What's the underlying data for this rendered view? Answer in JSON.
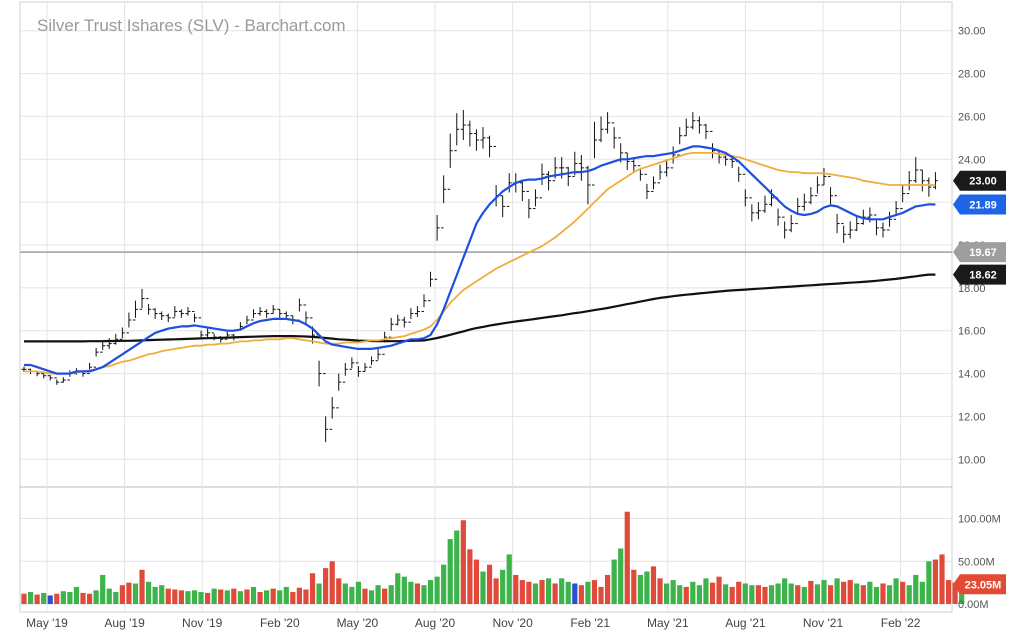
{
  "chart_data": {
    "type": "ohlc",
    "title": "Silver Trust Ishares (SLV) - Barchart.com",
    "price_axis": {
      "ylim": [
        9.5,
        30.5
      ],
      "ticks": [
        "10.00",
        "12.00",
        "14.00",
        "16.00",
        "18.00",
        "20.00",
        "22.00",
        "24.00",
        "26.00",
        "28.00",
        "30.00"
      ]
    },
    "volume_axis": {
      "ylim": [
        0,
        110
      ],
      "ticks": [
        "0.00M",
        "50.00M",
        "100.00M"
      ]
    },
    "x_ticks": [
      "May '19",
      "Aug '19",
      "Nov '19",
      "Feb '20",
      "May '20",
      "Aug '20",
      "Nov '20",
      "Feb '21",
      "May '21",
      "Aug '21",
      "Nov '21",
      "Feb '22"
    ],
    "grid": true,
    "reference_line": {
      "value": 19.67,
      "label": "19.67",
      "color": "#9e9e9e"
    },
    "last_value_tags": [
      {
        "label": "23.00",
        "value": 23.0,
        "color": "#1a1a1a"
      },
      {
        "label": "21.89",
        "value": 21.89,
        "color": "#1e64e6"
      },
      {
        "label": "18.62",
        "value": 18.62,
        "color": "#1a1a1a"
      }
    ],
    "volume_tag": {
      "label": "23.05M",
      "value": 23.05,
      "color": "#e24a33"
    },
    "colors": {
      "ma_fast": "#1e4fe0",
      "ma_mid": "#f0ad3c",
      "ma_slow": "#111111",
      "vol_up": "#3cb44b",
      "vol_down": "#e04a3a",
      "vol_other": "#2a4fd0"
    },
    "ohlc_close": [
      14.2,
      14.1,
      14.0,
      13.9,
      13.8,
      13.6,
      13.7,
      14.0,
      14.1,
      14.0,
      14.3,
      15.0,
      15.3,
      15.4,
      15.6,
      15.9,
      16.5,
      17.0,
      17.5,
      17.0,
      16.8,
      16.7,
      16.6,
      16.9,
      16.8,
      16.9,
      16.6,
      15.8,
      15.9,
      15.7,
      15.6,
      15.8,
      15.7,
      16.2,
      16.5,
      16.8,
      16.9,
      16.8,
      17.0,
      16.8,
      16.7,
      16.5,
      17.2,
      16.6,
      15.8,
      14.0,
      11.4,
      12.4,
      13.6,
      14.2,
      14.5,
      14.1,
      14.3,
      14.6,
      14.9,
      15.7,
      16.3,
      16.5,
      16.4,
      16.8,
      16.9,
      17.4,
      18.4,
      20.8,
      22.6,
      24.4,
      25.4,
      25.6,
      25.2,
      24.9,
      25.0,
      24.6,
      22.3,
      21.8,
      22.9,
      22.9,
      22.5,
      21.7,
      22.2,
      23.3,
      23.0,
      23.6,
      23.6,
      23.2,
      23.8,
      23.6,
      22.8,
      24.9,
      25.4,
      25.7,
      25.0,
      24.3,
      23.9,
      23.7,
      23.3,
      22.5,
      22.9,
      23.4,
      23.6,
      24.2,
      25.1,
      25.5,
      25.8,
      25.6,
      25.3,
      24.4,
      24.1,
      24.0,
      23.9,
      23.3,
      22.2,
      21.5,
      21.6,
      21.9,
      22.2,
      21.3,
      20.7,
      21.0,
      21.8,
      22.0,
      22.3,
      22.8,
      23.2,
      22.3,
      21.0,
      20.5,
      20.7,
      21.0,
      21.3,
      21.4,
      20.8,
      20.7,
      21.2,
      21.7,
      22.4,
      23.0,
      23.5,
      23.0,
      22.7,
      23.0
    ],
    "ohlc_range": [
      0.25,
      0.25,
      0.25,
      0.25,
      0.25,
      0.25,
      0.25,
      0.3,
      0.3,
      0.3,
      0.4,
      0.4,
      0.4,
      0.5,
      0.5,
      0.5,
      0.7,
      0.8,
      0.9,
      0.5,
      0.5,
      0.4,
      0.4,
      0.5,
      0.4,
      0.4,
      0.4,
      0.4,
      0.4,
      0.3,
      0.3,
      0.3,
      0.3,
      0.4,
      0.4,
      0.4,
      0.4,
      0.4,
      0.4,
      0.4,
      0.4,
      0.4,
      0.6,
      0.6,
      0.8,
      1.2,
      1.2,
      1.0,
      0.8,
      0.6,
      0.5,
      0.5,
      0.4,
      0.4,
      0.5,
      0.5,
      0.6,
      0.5,
      0.5,
      0.5,
      0.5,
      0.6,
      0.7,
      1.2,
      1.3,
      1.6,
      1.5,
      1.4,
      1.2,
      1.0,
      1.0,
      1.0,
      1.0,
      1.0,
      0.9,
      0.9,
      0.9,
      0.9,
      0.8,
      1.0,
      0.9,
      1.0,
      1.0,
      0.9,
      1.1,
      1.2,
      1.8,
      1.7,
      1.2,
      1.0,
      1.0,
      0.9,
      0.8,
      0.7,
      0.6,
      0.7,
      0.6,
      0.7,
      0.8,
      0.8,
      0.8,
      0.8,
      0.8,
      0.8,
      0.7,
      0.7,
      0.6,
      0.6,
      0.6,
      0.7,
      0.8,
      0.8,
      0.8,
      0.8,
      0.8,
      0.8,
      0.8,
      0.8,
      0.8,
      0.8,
      0.8,
      0.8,
      0.8,
      0.8,
      0.9,
      0.8,
      0.8,
      0.7,
      0.7,
      0.7,
      0.7,
      0.7,
      0.7,
      0.7,
      0.8,
      0.9,
      1.2,
      1.0,
      0.9,
      0.8
    ],
    "ma_fast": [
      14.4,
      14.4,
      14.3,
      14.2,
      14.1,
      14.0,
      14.0,
      14.0,
      14.1,
      14.1,
      14.1,
      14.2,
      14.3,
      14.5,
      14.7,
      14.9,
      15.1,
      15.3,
      15.5,
      15.7,
      15.9,
      16.0,
      16.1,
      16.15,
      16.2,
      16.2,
      16.25,
      16.2,
      16.15,
      16.1,
      16.05,
      16.0,
      16.0,
      16.05,
      16.2,
      16.35,
      16.45,
      16.5,
      16.55,
      16.55,
      16.55,
      16.5,
      16.45,
      16.3,
      16.1,
      15.8,
      15.5,
      15.35,
      15.3,
      15.25,
      15.2,
      15.15,
      15.15,
      15.15,
      15.2,
      15.25,
      15.3,
      15.4,
      15.5,
      15.6,
      15.6,
      15.65,
      15.8,
      16.3,
      17.0,
      17.8,
      18.6,
      19.4,
      20.2,
      21.0,
      21.5,
      21.9,
      22.2,
      22.5,
      22.7,
      22.9,
      23.0,
      23.05,
      23.05,
      23.1,
      23.2,
      23.25,
      23.3,
      23.35,
      23.4,
      23.4,
      23.45,
      23.55,
      23.7,
      23.8,
      23.9,
      24.0,
      24.0,
      24.05,
      24.1,
      24.15,
      24.15,
      24.2,
      24.25,
      24.3,
      24.4,
      24.5,
      24.6,
      24.6,
      24.55,
      24.5,
      24.4,
      24.3,
      24.1,
      23.9,
      23.6,
      23.3,
      23.0,
      22.7,
      22.4,
      22.1,
      21.8,
      21.6,
      21.45,
      21.4,
      21.45,
      21.55,
      21.75,
      21.85,
      21.8,
      21.65,
      21.5,
      21.35,
      21.25,
      21.2,
      21.2,
      21.2,
      21.3,
      21.4,
      21.5,
      21.65,
      21.8,
      21.85,
      21.9,
      21.89
    ],
    "ma_mid": [
      14.1,
      14.1,
      14.1,
      14.05,
      14.0,
      14.0,
      14.0,
      14.0,
      14.05,
      14.1,
      14.15,
      14.2,
      14.3,
      14.35,
      14.45,
      14.55,
      14.6,
      14.7,
      14.8,
      14.9,
      14.95,
      15.05,
      15.1,
      15.15,
      15.2,
      15.25,
      15.3,
      15.3,
      15.35,
      15.35,
      15.4,
      15.4,
      15.45,
      15.5,
      15.5,
      15.55,
      15.55,
      15.6,
      15.6,
      15.6,
      15.65,
      15.65,
      15.6,
      15.55,
      15.5,
      15.45,
      15.4,
      15.4,
      15.4,
      15.45,
      15.45,
      15.45,
      15.5,
      15.55,
      15.55,
      15.6,
      15.65,
      15.7,
      15.75,
      15.85,
      15.95,
      16.05,
      16.2,
      16.5,
      16.9,
      17.3,
      17.6,
      17.9,
      18.1,
      18.3,
      18.5,
      18.7,
      18.9,
      19.05,
      19.2,
      19.35,
      19.5,
      19.65,
      19.8,
      19.95,
      20.15,
      20.35,
      20.6,
      20.85,
      21.1,
      21.4,
      21.7,
      22.0,
      22.3,
      22.6,
      22.8,
      23.0,
      23.2,
      23.4,
      23.55,
      23.65,
      23.75,
      23.85,
      23.95,
      24.05,
      24.15,
      24.25,
      24.3,
      24.3,
      24.3,
      24.3,
      24.25,
      24.2,
      24.15,
      24.1,
      24.0,
      23.9,
      23.8,
      23.7,
      23.6,
      23.5,
      23.45,
      23.4,
      23.4,
      23.35,
      23.35,
      23.35,
      23.35,
      23.3,
      23.25,
      23.2,
      23.15,
      23.1,
      23.0,
      22.95,
      22.9,
      22.85,
      22.8,
      22.8,
      22.8,
      22.8,
      22.8,
      22.8,
      22.8,
      22.8
    ],
    "ma_slow": [
      15.5,
      15.5,
      15.5,
      15.5,
      15.5,
      15.5,
      15.5,
      15.5,
      15.5,
      15.5,
      15.51,
      15.51,
      15.51,
      15.52,
      15.52,
      15.53,
      15.53,
      15.54,
      15.55,
      15.56,
      15.57,
      15.58,
      15.59,
      15.6,
      15.61,
      15.62,
      15.63,
      15.64,
      15.65,
      15.66,
      15.67,
      15.68,
      15.69,
      15.7,
      15.71,
      15.72,
      15.73,
      15.74,
      15.75,
      15.75,
      15.75,
      15.75,
      15.74,
      15.73,
      15.71,
      15.69,
      15.66,
      15.63,
      15.6,
      15.58,
      15.56,
      15.54,
      15.53,
      15.52,
      15.51,
      15.51,
      15.51,
      15.51,
      15.52,
      15.53,
      15.54,
      15.55,
      15.6,
      15.66,
      15.73,
      15.81,
      15.89,
      15.97,
      16.05,
      16.12,
      16.18,
      16.24,
      16.29,
      16.34,
      16.39,
      16.43,
      16.47,
      16.51,
      16.55,
      16.6,
      16.64,
      16.68,
      16.72,
      16.77,
      16.82,
      16.86,
      16.91,
      16.96,
      17.01,
      17.06,
      17.12,
      17.18,
      17.24,
      17.3,
      17.36,
      17.42,
      17.48,
      17.53,
      17.57,
      17.61,
      17.65,
      17.68,
      17.71,
      17.74,
      17.77,
      17.8,
      17.83,
      17.86,
      17.88,
      17.9,
      17.92,
      17.94,
      17.96,
      17.98,
      18.0,
      18.02,
      18.04,
      18.06,
      18.08,
      18.1,
      18.12,
      18.14,
      18.16,
      18.18,
      18.2,
      18.22,
      18.24,
      18.26,
      18.28,
      18.3,
      18.33,
      18.36,
      18.39,
      18.42,
      18.46,
      18.5,
      18.54,
      18.58,
      18.62,
      18.62
    ],
    "volume": [
      12,
      14,
      11,
      13,
      10,
      12,
      15,
      14,
      20,
      13,
      12,
      16,
      34,
      18,
      14,
      22,
      25,
      24,
      40,
      26,
      20,
      22,
      18,
      17,
      16,
      15,
      16,
      14,
      13,
      18,
      17,
      16,
      18,
      15,
      17,
      20,
      14,
      16,
      18,
      16,
      20,
      14,
      19,
      17,
      36,
      24,
      42,
      50,
      30,
      24,
      20,
      26,
      18,
      16,
      22,
      18,
      22,
      36,
      32,
      26,
      24,
      22,
      28,
      32,
      46,
      76,
      86,
      98,
      64,
      52,
      38,
      46,
      30,
      40,
      58,
      34,
      28,
      26,
      24,
      28,
      30,
      24,
      30,
      26,
      24,
      22,
      26,
      28,
      20,
      34,
      52,
      65,
      108,
      40,
      34,
      38,
      44,
      30,
      24,
      28,
      22,
      20,
      26,
      22,
      30,
      25,
      32,
      23,
      20,
      26,
      24,
      22,
      22,
      20,
      22,
      24,
      30,
      24,
      22,
      20,
      27,
      23,
      28,
      22,
      30,
      26,
      28,
      24,
      22,
      26,
      20,
      24,
      22,
      30,
      26,
      22,
      34,
      26,
      50,
      52,
      58,
      28,
      25,
      23.05
    ],
    "volume_colors": [
      "down",
      "up",
      "down",
      "up",
      "other",
      "down",
      "up",
      "up",
      "up",
      "down",
      "down",
      "up",
      "up",
      "up",
      "up",
      "down",
      "down",
      "up",
      "down",
      "up",
      "up",
      "up",
      "down",
      "down",
      "down",
      "up",
      "up",
      "up",
      "down",
      "up",
      "down",
      "up",
      "down",
      "up",
      "down",
      "up",
      "down",
      "up",
      "down",
      "up",
      "up",
      "down",
      "down",
      "down",
      "down",
      "up",
      "down",
      "down",
      "down",
      "up",
      "up",
      "up",
      "down",
      "up",
      "up",
      "down",
      "up",
      "up",
      "up",
      "up",
      "down",
      "up",
      "up",
      "up",
      "up",
      "up",
      "up",
      "down",
      "down",
      "down",
      "up",
      "down",
      "down",
      "up",
      "up",
      "down",
      "down",
      "down",
      "up",
      "down",
      "up",
      "down",
      "up",
      "up",
      "other",
      "down",
      "up",
      "down",
      "down",
      "down",
      "up",
      "up",
      "down",
      "down",
      "up",
      "up",
      "down",
      "down",
      "up",
      "up",
      "up",
      "down",
      "up",
      "up",
      "up",
      "down",
      "down",
      "up",
      "down",
      "down",
      "up",
      "up",
      "down",
      "down",
      "up",
      "up",
      "up",
      "up",
      "down",
      "up",
      "down",
      "up",
      "up",
      "down",
      "up",
      "down",
      "down",
      "up",
      "down",
      "up",
      "up",
      "down",
      "up",
      "up",
      "down",
      "up",
      "up",
      "up",
      "up",
      "down",
      "down",
      "down",
      "down"
    ]
  }
}
